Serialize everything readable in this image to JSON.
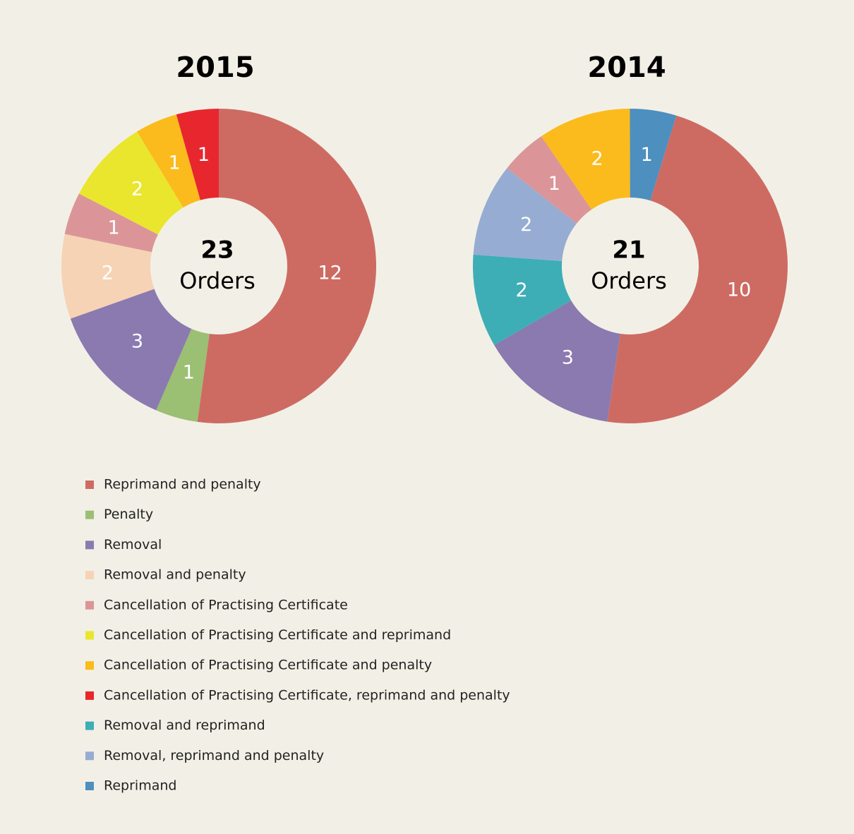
{
  "chart_data": [
    {
      "type": "donut",
      "title": "2015",
      "total": 23,
      "center_label": "Orders",
      "start_angle": 0,
      "categories": [
        "Reprimand and penalty",
        "Penalty",
        "Removal",
        "Removal and penalty",
        "Cancellation of Practising Certificate",
        "Cancellation of Practising Certificate and reprimand",
        "Cancellation of Practising Certificate and penalty",
        "Cancellation of Practising Certificate, reprimand and penalty"
      ],
      "values": [
        12,
        1,
        3,
        2,
        1,
        2,
        1,
        1
      ],
      "colors": [
        "#cd6b63",
        "#9bbf73",
        "#8a7ab0",
        "#f6d3b4",
        "#db9598",
        "#e9e62d",
        "#fbbb1c",
        "#e8262e"
      ]
    },
    {
      "type": "donut",
      "title": "2014",
      "total": 21,
      "center_label": "Orders",
      "start_angle": 17,
      "categories": [
        "Reprimand and penalty",
        "Removal",
        "Removal and reprimand",
        "Removal, reprimand and penalty",
        "Cancellation of Practising Certificate",
        "Cancellation of Practising Certificate and penalty",
        "Reprimand"
      ],
      "values": [
        10,
        3,
        2,
        2,
        1,
        2,
        1
      ],
      "colors": [
        "#cd6b63",
        "#8a7ab0",
        "#3daeb6",
        "#96acd2",
        "#db9598",
        "#fbbb1c",
        "#4d8fbf"
      ]
    }
  ]
}
